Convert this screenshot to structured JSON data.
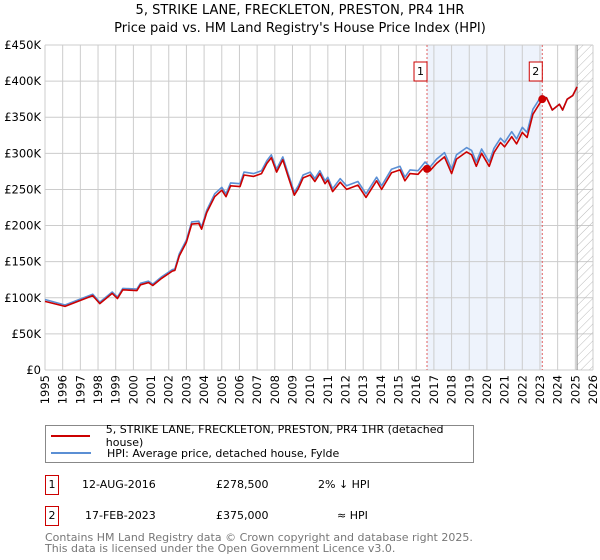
{
  "title": "5, STRIKE LANE, FRECKLETON, PRESTON, PR4 1HR",
  "subtitle": "Price paid vs. HM Land Registry's House Price Index (HPI)",
  "colors": {
    "property": "#cc0000",
    "hpi": "#5b8fd4",
    "shade": "#eef3fc",
    "grid": "#cccccc"
  },
  "chart_data": {
    "type": "line",
    "xlim": [
      1995,
      2026
    ],
    "ylim": [
      0,
      450000
    ],
    "yticks": [
      0,
      50000,
      100000,
      150000,
      200000,
      250000,
      300000,
      350000,
      400000,
      450000
    ],
    "ytick_labels": [
      "£0",
      "£50K",
      "£100K",
      "£150K",
      "£200K",
      "£250K",
      "£300K",
      "£350K",
      "£400K",
      "£450K"
    ],
    "xticks": [
      "1995",
      "1996",
      "1997",
      "1998",
      "1999",
      "2000",
      "2001",
      "2002",
      "2003",
      "2004",
      "2005",
      "2006",
      "2007",
      "2008",
      "2009",
      "2010",
      "2011",
      "2012",
      "2013",
      "2014",
      "2015",
      "2016",
      "2017",
      "2018",
      "2019",
      "2020",
      "2021",
      "2022",
      "2023",
      "2024",
      "2025",
      "2026"
    ],
    "grid": true,
    "shaded_period": [
      2016.61,
      2023.13
    ],
    "forecast_hatch_from": 2025.1,
    "series": [
      {
        "name": "5, STRIKE LANE, FRECKLETON, PRESTON, PR4 1HR (detached house)",
        "color": "#cc0000",
        "x": [
          1995.0,
          1996.13,
          1997.7,
          1998.1,
          1998.8,
          1999.1,
          1999.4,
          2000.2,
          2000.4,
          2000.85,
          2001.1,
          2001.6,
          2002.2,
          2002.35,
          2002.6,
          2003.0,
          2003.3,
          2003.7,
          2003.86,
          2004.15,
          2004.6,
          2005.0,
          2005.24,
          2005.5,
          2006.03,
          2006.26,
          2006.8,
          2007.25,
          2007.55,
          2007.8,
          2008.1,
          2008.45,
          2008.75,
          2009.1,
          2009.33,
          2009.6,
          2010.0,
          2010.27,
          2010.55,
          2010.84,
          2011.0,
          2011.27,
          2011.7,
          2012.06,
          2012.7,
          2013.16,
          2013.76,
          2014.04,
          2014.6,
          2015.08,
          2015.36,
          2015.65,
          2016.1,
          2016.5,
          2016.61,
          2016.78,
          2017.15,
          2017.6,
          2018.0,
          2018.28,
          2018.85,
          2019.13,
          2019.4,
          2019.7,
          2020.13,
          2020.4,
          2020.77,
          2021.0,
          2021.4,
          2021.68,
          2022.0,
          2022.27,
          2022.6,
          2023.13,
          2023.37,
          2023.7,
          2024.1,
          2024.28,
          2024.54,
          2024.85,
          2025.1
        ],
        "y": [
          95000,
          88000,
          103000,
          92000,
          106000,
          99000,
          111000,
          110000,
          118000,
          121000,
          117000,
          127000,
          137000,
          138000,
          158000,
          177000,
          202000,
          203000,
          195000,
          218000,
          240000,
          249000,
          240000,
          255000,
          254000,
          270000,
          268000,
          272000,
          286000,
          294000,
          274000,
          291000,
          268000,
          242000,
          251000,
          266000,
          270000,
          261000,
          272000,
          258000,
          263000,
          247000,
          260000,
          250000,
          256000,
          239000,
          262000,
          250000,
          273000,
          277000,
          262000,
          272000,
          271000,
          282000,
          278500,
          276000,
          286000,
          295000,
          272000,
          292000,
          302000,
          298000,
          282000,
          300000,
          282000,
          301000,
          315000,
          309000,
          323000,
          313000,
          329000,
          322000,
          354000,
          375000,
          377000,
          360000,
          368000,
          360000,
          375000,
          380000,
          392000
        ]
      },
      {
        "name": "HPI: Average price, detached house, Fylde",
        "color": "#5b8fd4",
        "x": [
          1995.0,
          1996.13,
          1997.7,
          1998.1,
          1998.8,
          1999.1,
          1999.4,
          2000.2,
          2000.4,
          2000.85,
          2001.1,
          2001.6,
          2002.2,
          2002.35,
          2002.6,
          2003.0,
          2003.3,
          2003.7,
          2003.86,
          2004.15,
          2004.6,
          2005.0,
          2005.24,
          2005.5,
          2006.03,
          2006.26,
          2006.8,
          2007.25,
          2007.55,
          2007.8,
          2008.1,
          2008.45,
          2008.75,
          2009.1,
          2009.33,
          2009.6,
          2010.0,
          2010.27,
          2010.55,
          2010.84,
          2011.0,
          2011.27,
          2011.7,
          2012.06,
          2012.7,
          2013.16,
          2013.76,
          2014.04,
          2014.6,
          2015.08,
          2015.36,
          2015.65,
          2016.1,
          2016.5,
          2016.78,
          2017.15,
          2017.6,
          2018.0,
          2018.28,
          2018.85,
          2019.13,
          2019.4,
          2019.7,
          2020.13,
          2020.4,
          2020.77,
          2021.0,
          2021.4,
          2021.68,
          2022.0,
          2022.27,
          2022.6,
          2023.1,
          2023.37,
          2023.7,
          2024.1,
          2024.28,
          2024.54,
          2024.85,
          2025.1
        ],
        "y": [
          97600,
          90000,
          105000,
          94000,
          108000,
          101000,
          113000,
          112000,
          120000,
          123000,
          119000,
          129000,
          139000,
          140000,
          161000,
          180000,
          205000,
          206000,
          198000,
          221000,
          244000,
          253000,
          244000,
          259000,
          258000,
          274000,
          272000,
          276000,
          290000,
          298000,
          278000,
          295000,
          272000,
          246000,
          255000,
          270000,
          274000,
          265000,
          276000,
          262000,
          267000,
          251000,
          265000,
          255000,
          261000,
          244000,
          267000,
          255000,
          278000,
          282000,
          267000,
          277000,
          276000,
          288000,
          281000,
          292000,
          301000,
          278000,
          298000,
          308000,
          304000,
          288000,
          306000,
          288000,
          307000,
          321000,
          315000,
          330000,
          320000,
          336000,
          329000,
          361000,
          380000,
          377000,
          360000,
          368000,
          360000,
          375000,
          380000,
          392000
        ]
      }
    ],
    "annotations": [
      {
        "label": "1",
        "x": 2016.61,
        "y": 278500
      },
      {
        "label": "2",
        "x": 2023.13,
        "y": 375000
      }
    ]
  },
  "legend": {
    "property_label": "5, STRIKE LANE, FRECKLETON, PRESTON, PR4 1HR (detached house)",
    "hpi_label": "HPI: Average price, detached house, Fylde"
  },
  "sales": [
    {
      "num": "1",
      "date": "12-AUG-2016",
      "price": "£278,500",
      "relation": "2% ↓ HPI"
    },
    {
      "num": "2",
      "date": "17-FEB-2023",
      "price": "£375,000",
      "relation": "≈ HPI"
    }
  ],
  "footer": {
    "line1": "Contains HM Land Registry data © Crown copyright and database right 2025.",
    "line2": "This data is licensed under the Open Government Licence v3.0."
  }
}
